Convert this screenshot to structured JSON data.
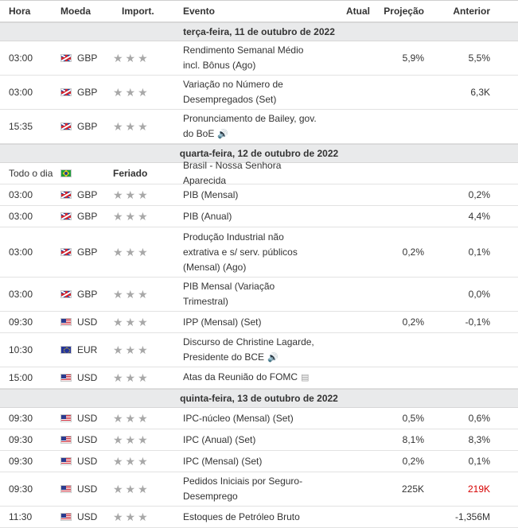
{
  "headers": {
    "time": "Hora",
    "currency": "Moeda",
    "importance": "Import.",
    "event": "Evento",
    "actual": "Atual",
    "forecast": "Projeção",
    "previous": "Anterior"
  },
  "icons": {
    "stars": "★★★",
    "speaker": "🔊",
    "document": "▤"
  },
  "colors": {
    "day_header_bg": "#e9eaeb",
    "star_gray": "#a8a8a8",
    "negative_red": "#d60000"
  },
  "days": [
    {
      "label": "terça-feira, 11 de outubro de 2022",
      "events": [
        {
          "time": "03:00",
          "flag": "gb",
          "currency": "GBP",
          "importance": "stars",
          "event_line1": "Rendimento Semanal Médio",
          "event_line2": "incl. Bônus (Ago)",
          "icon": "",
          "actual": "",
          "forecast": "5,9%",
          "previous": "5,5%",
          "previous_red": false
        },
        {
          "time": "03:00",
          "flag": "gb",
          "currency": "GBP",
          "importance": "stars",
          "event_line1": "Variação no Número de",
          "event_line2": "Desempregados (Set)",
          "icon": "",
          "actual": "",
          "forecast": "",
          "previous": "6,3K",
          "previous_red": false
        },
        {
          "time": "15:35",
          "flag": "gb",
          "currency": "GBP",
          "importance": "stars",
          "event_line1": "Pronunciamento de Bailey, gov.",
          "event_line2": "do BoE",
          "icon": "speaker",
          "actual": "",
          "forecast": "",
          "previous": "",
          "previous_red": false
        }
      ]
    },
    {
      "label": "quarta-feira, 12 de outubro de 2022",
      "events": [
        {
          "time": "Todo o dia",
          "flag": "br",
          "currency": "",
          "importance": "holiday",
          "importance_text": "Feriado",
          "event_line1": "Brasil - Nossa Senhora Aparecida",
          "event_line2": "",
          "icon": "",
          "actual": "",
          "forecast": "",
          "previous": "",
          "previous_red": false
        },
        {
          "time": "03:00",
          "flag": "gb",
          "currency": "GBP",
          "importance": "stars",
          "event_line1": "PIB (Mensal)",
          "event_line2": "",
          "icon": "",
          "actual": "",
          "forecast": "",
          "previous": "0,2%",
          "previous_red": false
        },
        {
          "time": "03:00",
          "flag": "gb",
          "currency": "GBP",
          "importance": "stars",
          "event_line1": "PIB (Anual)",
          "event_line2": "",
          "icon": "",
          "actual": "",
          "forecast": "",
          "previous": "4,4%",
          "previous_red": false
        },
        {
          "time": "03:00",
          "flag": "gb",
          "currency": "GBP",
          "importance": "stars",
          "event_line1": "Produção Industrial não",
          "event_line2": "extrativa e s/ serv. públicos",
          "event_line3": "(Mensal) (Ago)",
          "icon": "",
          "actual": "",
          "forecast": "0,2%",
          "previous": "0,1%",
          "previous_red": false
        },
        {
          "time": "03:00",
          "flag": "gb",
          "currency": "GBP",
          "importance": "stars",
          "event_line1": "PIB Mensal (Variação",
          "event_line2": "Trimestral)",
          "icon": "",
          "actual": "",
          "forecast": "",
          "previous": "0,0%",
          "previous_red": false
        },
        {
          "time": "09:30",
          "flag": "us",
          "currency": "USD",
          "importance": "stars",
          "event_line1": "IPP (Mensal) (Set)",
          "event_line2": "",
          "icon": "",
          "actual": "",
          "forecast": "0,2%",
          "previous": "-0,1%",
          "previous_red": false
        },
        {
          "time": "10:30",
          "flag": "eu",
          "currency": "EUR",
          "importance": "stars",
          "event_line1": "Discurso de Christine Lagarde,",
          "event_line2": "Presidente do BCE",
          "icon": "speaker",
          "actual": "",
          "forecast": "",
          "previous": "",
          "previous_red": false
        },
        {
          "time": "15:00",
          "flag": "us",
          "currency": "USD",
          "importance": "stars",
          "event_line1": "Atas da Reunião do FOMC",
          "event_line2": "",
          "icon": "document",
          "actual": "",
          "forecast": "",
          "previous": "",
          "previous_red": false
        }
      ]
    },
    {
      "label": "quinta-feira, 13 de outubro de 2022",
      "events": [
        {
          "time": "09:30",
          "flag": "us",
          "currency": "USD",
          "importance": "stars",
          "event_line1": "IPC-núcleo (Mensal) (Set)",
          "event_line2": "",
          "icon": "",
          "actual": "",
          "forecast": "0,5%",
          "previous": "0,6%",
          "previous_red": false
        },
        {
          "time": "09:30",
          "flag": "us",
          "currency": "USD",
          "importance": "stars",
          "event_line1": "IPC (Anual) (Set)",
          "event_line2": "",
          "icon": "",
          "actual": "",
          "forecast": "8,1%",
          "previous": "8,3%",
          "previous_red": false
        },
        {
          "time": "09:30",
          "flag": "us",
          "currency": "USD",
          "importance": "stars",
          "event_line1": "IPC (Mensal) (Set)",
          "event_line2": "",
          "icon": "",
          "actual": "",
          "forecast": "0,2%",
          "previous": "0,1%",
          "previous_red": false
        },
        {
          "time": "09:30",
          "flag": "us",
          "currency": "USD",
          "importance": "stars",
          "event_line1": "Pedidos Iniciais por Seguro-",
          "event_line2": "Desemprego",
          "icon": "",
          "actual": "",
          "forecast": "225K",
          "previous": "219K",
          "previous_red": true
        },
        {
          "time": "11:30",
          "flag": "us",
          "currency": "USD",
          "importance": "stars",
          "event_line1": "Estoques de Petróleo Bruto",
          "event_line2": "",
          "icon": "",
          "actual": "",
          "forecast": "",
          "previous": "-1,356M",
          "previous_red": false
        }
      ]
    }
  ]
}
